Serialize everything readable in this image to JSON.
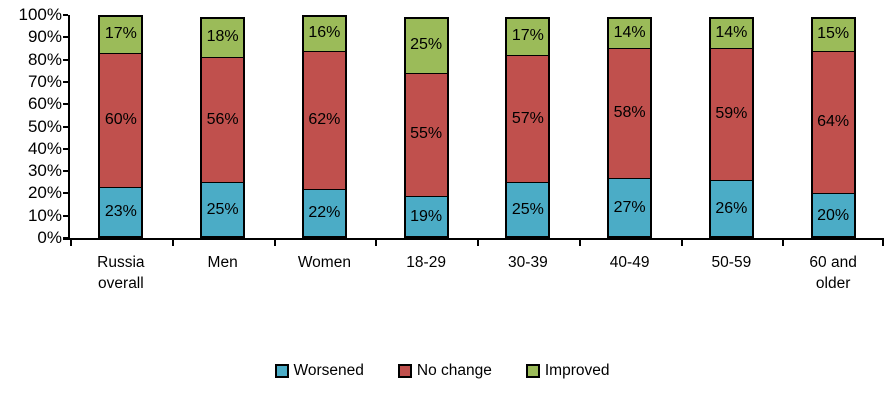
{
  "chart_data": {
    "type": "bar",
    "stacked": true,
    "orientation": "vertical",
    "title": "",
    "xlabel": "",
    "ylabel": "",
    "ylim": [
      0,
      100
    ],
    "ytick_step": 10,
    "ytick_labels": [
      "0%",
      "10%",
      "20%",
      "30%",
      "40%",
      "50%",
      "60%",
      "70%",
      "80%",
      "90%",
      "100%"
    ],
    "grid": false,
    "legend_position": "bottom",
    "categories": [
      "Russia\noverall",
      "Men",
      "Women",
      "18-29",
      "30-39",
      "40-49",
      "50-59",
      "60 and\nolder"
    ],
    "series": [
      {
        "name": "Worsened",
        "color": "#4BACC6",
        "values": [
          23,
          25,
          22,
          19,
          25,
          27,
          26,
          20
        ]
      },
      {
        "name": "No change",
        "color": "#C0504D",
        "values": [
          60,
          56,
          62,
          55,
          57,
          58,
          59,
          64
        ]
      },
      {
        "name": "Improved",
        "color": "#9BBB59",
        "values": [
          17,
          18,
          16,
          25,
          17,
          14,
          14,
          15
        ]
      }
    ],
    "data_label_format": "percent",
    "axis_color": "#000000",
    "bar_border_color": "#000000"
  },
  "legend": {
    "items": [
      {
        "label": "Worsened",
        "color": "#4BACC6"
      },
      {
        "label": "No change",
        "color": "#C0504D"
      },
      {
        "label": "Improved",
        "color": "#9BBB59"
      }
    ]
  }
}
